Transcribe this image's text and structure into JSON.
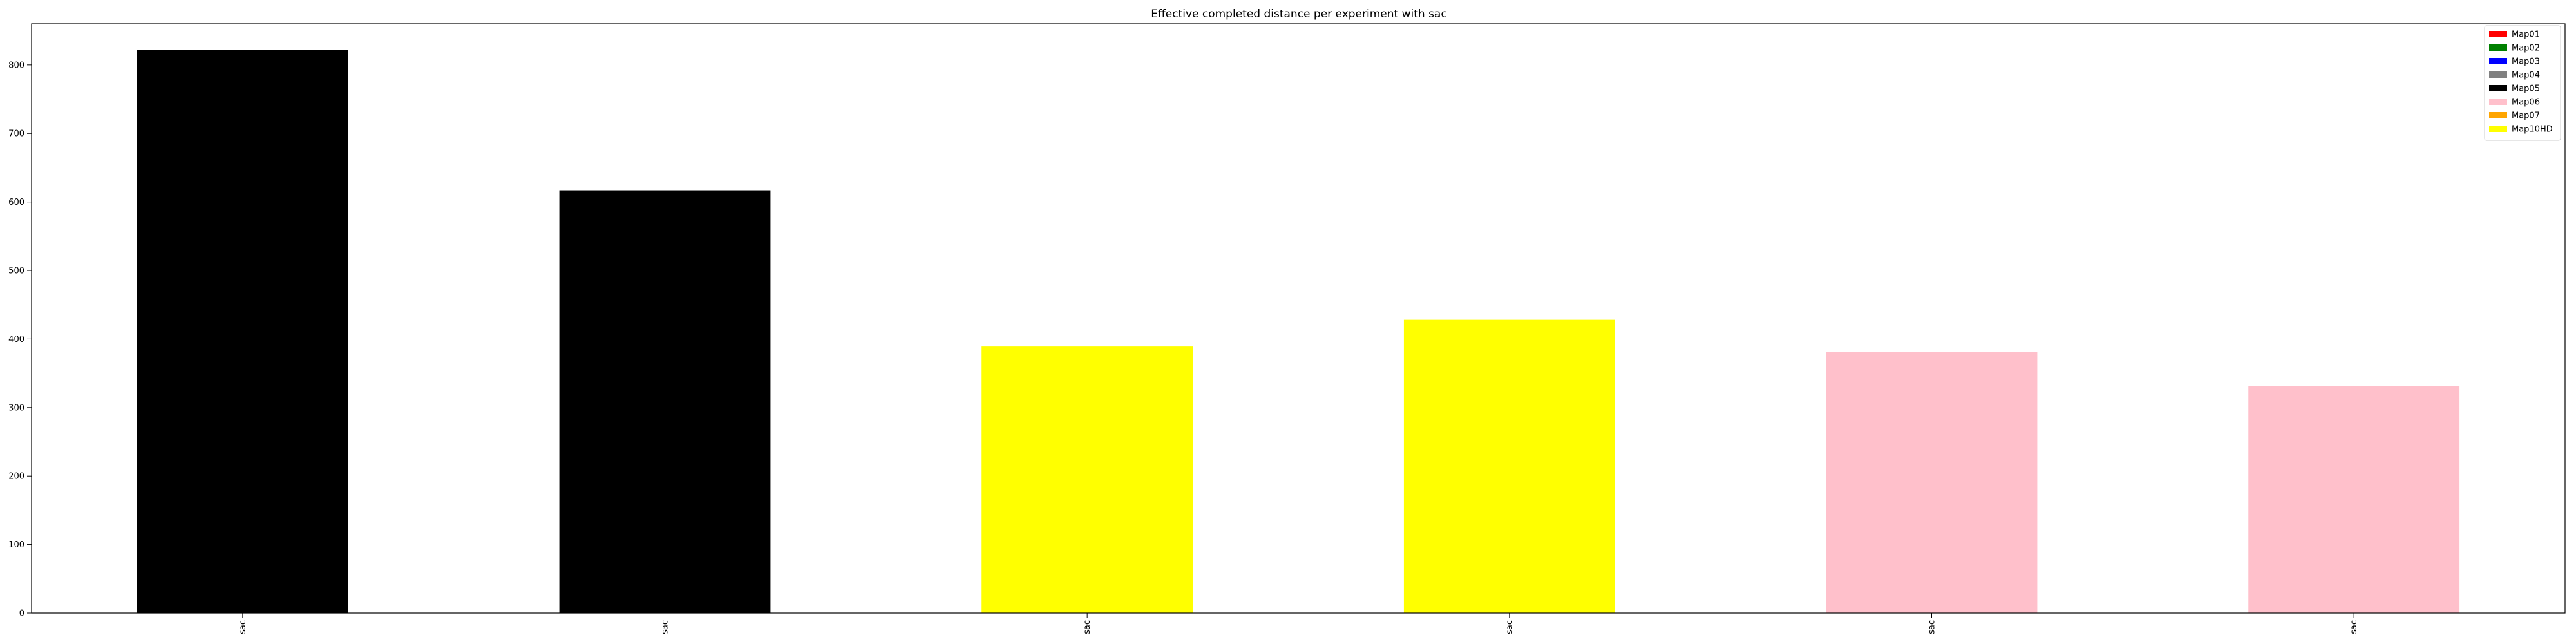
{
  "chart_data": {
    "type": "bar",
    "title": "Effective completed distance per experiment with sac",
    "xlabel": "",
    "ylabel": "",
    "categories": [
      "sac",
      "sac",
      "sac",
      "sac",
      "sac",
      "sac"
    ],
    "values": [
      822,
      617,
      389,
      428,
      381,
      331
    ],
    "bar_colors": [
      "#000000",
      "#000000",
      "#ffff00",
      "#ffff00",
      "#ffc0cb",
      "#ffc0cb"
    ],
    "ylim": [
      0,
      860
    ],
    "yticks": [
      0,
      100,
      200,
      300,
      400,
      500,
      600,
      700,
      800
    ],
    "grid": false,
    "legend_position": "top-right",
    "legend": [
      {
        "label": "Map01",
        "color": "#ff0000"
      },
      {
        "label": "Map02",
        "color": "#008000"
      },
      {
        "label": "Map03",
        "color": "#0000ff"
      },
      {
        "label": "Map04",
        "color": "#808080"
      },
      {
        "label": "Map05",
        "color": "#000000"
      },
      {
        "label": "Map06",
        "color": "#ffc0cb"
      },
      {
        "label": "Map07",
        "color": "#ffa500"
      },
      {
        "label": "Map10HD",
        "color": "#ffff00"
      }
    ]
  }
}
